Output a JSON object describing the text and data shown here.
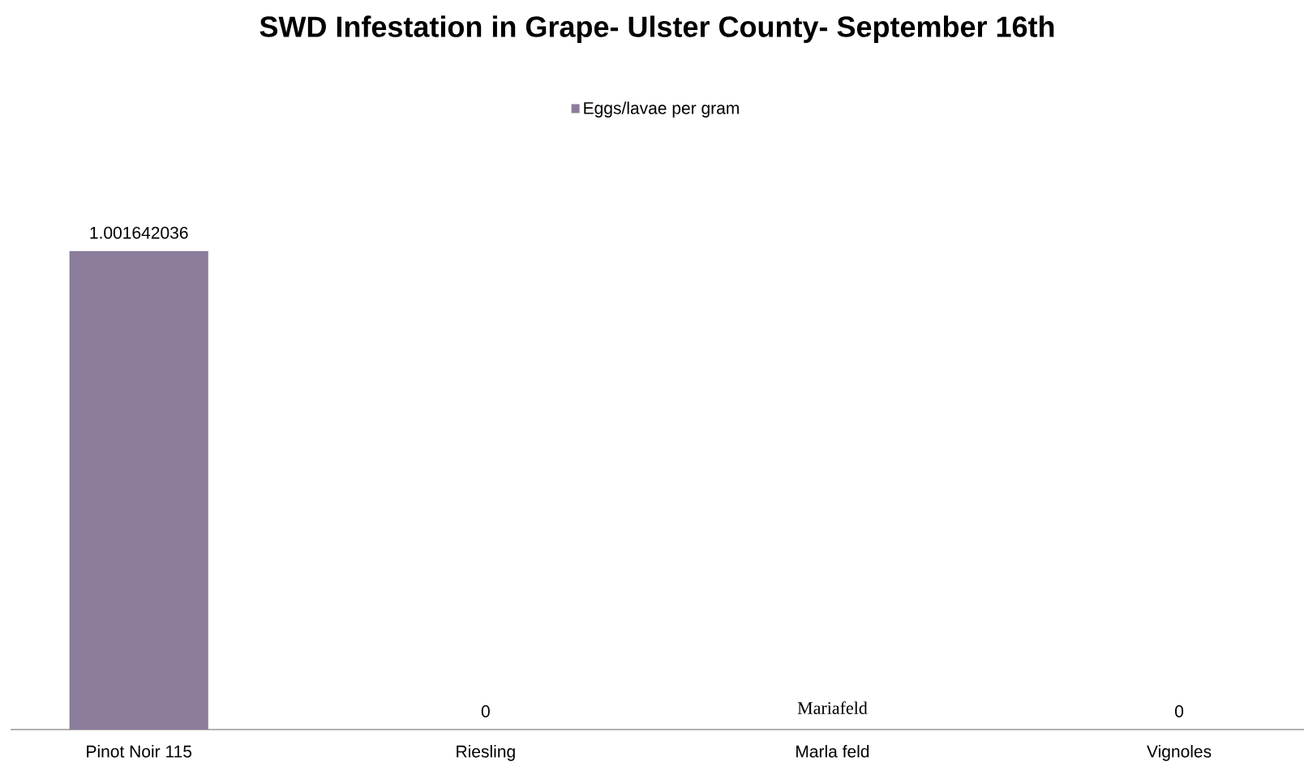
{
  "chart_data": {
    "type": "bar",
    "title": "SWD Infestation in Grape- Ulster County- September 16th",
    "categories": [
      "Pinot Noir 115",
      "Riesling",
      "Marla feld",
      "Vignoles"
    ],
    "series": [
      {
        "name": "Eggs/lavae per gram",
        "color": "#8b7d9b",
        "values": [
          1.001642036,
          0,
          0,
          0
        ],
        "value_labels": [
          "1.001642036",
          "0",
          null,
          "0"
        ]
      }
    ],
    "annotations": [
      {
        "text": "Mariafeld",
        "x": "Marla feld",
        "y": 0
      }
    ],
    "legend": "top"
  }
}
